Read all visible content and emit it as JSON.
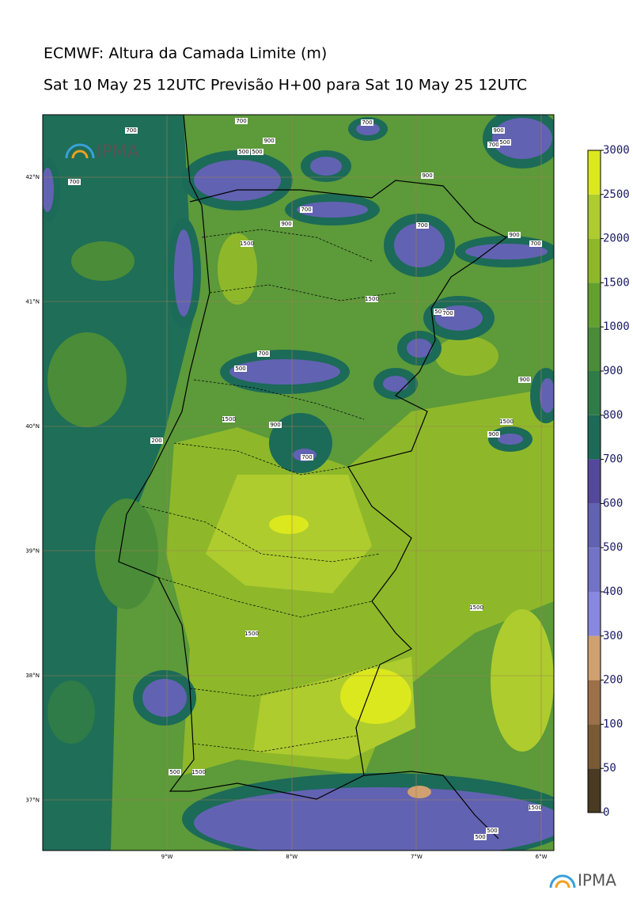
{
  "header": {
    "title": "ECMWF: Altura da Camada Limite (m)",
    "subtitle": "Sat 10 May 25 12UTC Previsão H+00 para Sat 10 May 25 12UTC"
  },
  "map": {
    "lat_labels": [
      "42°N",
      "41°N",
      "40°N",
      "39°N",
      "38°N",
      "37°N"
    ],
    "lon_labels": [
      "9°W",
      "8°W",
      "7°W",
      "6°W"
    ],
    "contour_labels": [
      700,
      700,
      700,
      900,
      500,
      500,
      900,
      700,
      500,
      700,
      900,
      700,
      900,
      1500,
      700,
      900,
      700,
      1500,
      500,
      700,
      700,
      500,
      900,
      1500,
      900,
      1500,
      900,
      200,
      700,
      1500,
      1500,
      1500,
      500,
      1500,
      500,
      500
    ],
    "logo_top": "IPMA"
  },
  "colorbar": {
    "levels": [
      0,
      50,
      100,
      200,
      300,
      400,
      500,
      600,
      700,
      800,
      900,
      1000,
      1500,
      2000,
      2500,
      3000
    ],
    "colors": [
      "#4a3a22",
      "#7a5a35",
      "#9c7048",
      "#d0a070",
      "#8888e0",
      "#7272c8",
      "#6262b2",
      "#54489c",
      "#1c6a58",
      "#2f7c48",
      "#4a8c38",
      "#64a02e",
      "#8eb82a",
      "#aecc2e",
      "#dce81e"
    ]
  },
  "footer": {
    "logo": "IPMA"
  }
}
